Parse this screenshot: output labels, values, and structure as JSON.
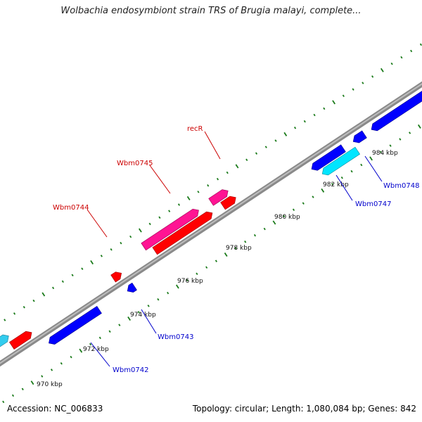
{
  "title": "Wolbachia endosymbiont strain TRS of Brugia malayi, complete...",
  "footer": {
    "accession": "Accession: NC_006833",
    "summary": "Topology: circular; Length: 1,080,084 bp; Genes: 842"
  },
  "scale_labels": [
    "970 kbp",
    "972 kbp",
    "974 kbp",
    "976 kbp",
    "978 kbp",
    "980 kbp",
    "982 kbp",
    "984 kbp"
  ],
  "gene_labels": [
    {
      "id": "recR",
      "text": "recR",
      "strand": "forward"
    },
    {
      "id": "wbm0745",
      "text": "Wbm0745",
      "strand": "forward"
    },
    {
      "id": "wbm0744",
      "text": "Wbm0744",
      "strand": "forward"
    },
    {
      "id": "wbm0743",
      "text": "Wbm0743",
      "strand": "reverse"
    },
    {
      "id": "wbm0742",
      "text": "Wbm0742",
      "strand": "reverse"
    },
    {
      "id": "wbm0747",
      "text": "Wbm0747",
      "strand": "reverse"
    },
    {
      "id": "wbm0748",
      "text": "Wbm0748",
      "strand": "reverse"
    }
  ],
  "colors": {
    "forward_label": "#cc0000",
    "reverse_label": "#0000cc",
    "cds_red": "#ff0000",
    "cds_pink": "#ff1493",
    "cds_blue": "#0000ff",
    "cds_cyan": "#00e5ff",
    "cds_olive": "#6b8e23",
    "backbone": "#888888",
    "tick": "#1a7a1a"
  }
}
